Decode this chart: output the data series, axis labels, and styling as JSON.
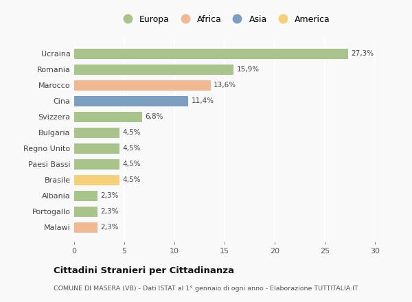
{
  "countries": [
    "Ucraina",
    "Romania",
    "Marocco",
    "Cina",
    "Svizzera",
    "Bulgaria",
    "Regno Unito",
    "Paesi Bassi",
    "Brasile",
    "Albania",
    "Portogallo",
    "Malawi"
  ],
  "values": [
    27.3,
    15.9,
    13.6,
    11.4,
    6.8,
    4.5,
    4.5,
    4.5,
    4.5,
    2.3,
    2.3,
    2.3
  ],
  "labels": [
    "27,3%",
    "15,9%",
    "13,6%",
    "11,4%",
    "6,8%",
    "4,5%",
    "4,5%",
    "4,5%",
    "4,5%",
    "2,3%",
    "2,3%",
    "2,3%"
  ],
  "colors": [
    "#a8c48a",
    "#a8c48a",
    "#f0b992",
    "#7a9fc2",
    "#a8c48a",
    "#a8c48a",
    "#a8c48a",
    "#a8c48a",
    "#f5d07a",
    "#a8c48a",
    "#a8c48a",
    "#f0b992"
  ],
  "continents": [
    "Europa",
    "Africa",
    "Asia",
    "America"
  ],
  "legend_colors": [
    "#a8c48a",
    "#f0b992",
    "#7a9fc2",
    "#f5d07a"
  ],
  "xlim": [
    0,
    30
  ],
  "xticks": [
    0,
    5,
    10,
    15,
    20,
    25,
    30
  ],
  "title": "Cittadini Stranieri per Cittadinanza",
  "subtitle": "COMUNE DI MASERA (VB) - Dati ISTAT al 1° gennaio di ogni anno - Elaborazione TUTTITALIA.IT",
  "background_color": "#f9f9f9",
  "bar_height": 0.65
}
